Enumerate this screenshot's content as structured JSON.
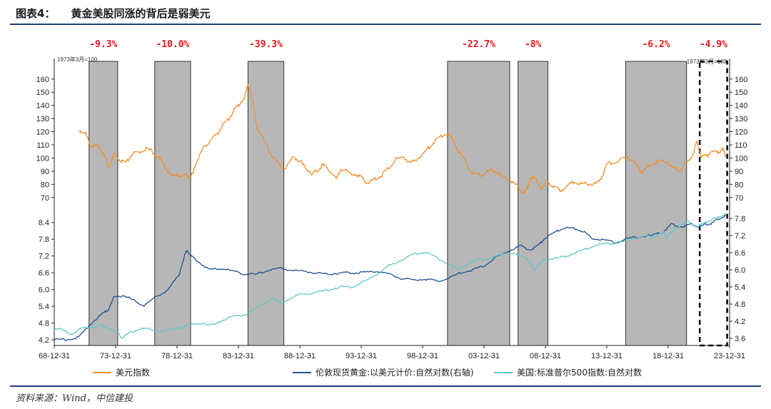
{
  "figure": {
    "label": "图表4：",
    "title": "黄金美股同涨的背后是弱美元",
    "source": "资料来源：Wind，中信建投"
  },
  "chart_data": {
    "type": "line",
    "x_tick_labels": [
      "68-12-31",
      "73-12-31",
      "78-12-31",
      "83-12-31",
      "88-12-31",
      "93-12-31",
      "98-12-31",
      "03-12-31",
      "08-12-31",
      "13-12-31",
      "18-12-31",
      "23-12-31"
    ],
    "x_range": [
      1968.99,
      2025.5
    ],
    "base_notes": [
      "1973年3月=100",
      "1973年3月=100"
    ],
    "left_upper_axis": {
      "ticks": [
        70,
        80,
        90,
        100,
        110,
        120,
        130,
        140,
        150,
        160
      ],
      "range": [
        65,
        168
      ]
    },
    "left_lower_axis": {
      "ticks": [
        4.2,
        4.8,
        5.4,
        6.0,
        6.6,
        7.2,
        7.8,
        8.4
      ],
      "range": [
        4.1,
        8.8
      ]
    },
    "right_upper_axis": {
      "ticks": [
        70,
        80,
        90,
        100,
        110,
        120,
        130,
        140,
        150,
        160
      ],
      "range": [
        65,
        168
      ]
    },
    "right_lower_axis": {
      "ticks": [
        3.6,
        4.2,
        4.8,
        5.4,
        6.0,
        6.6,
        7.2,
        7.8
      ],
      "range": [
        3.45,
        8.05
      ]
    },
    "shaded_periods": [
      {
        "start": 1971.9,
        "end": 1974.3,
        "label": "-9.3%"
      },
      {
        "start": 1977.4,
        "end": 1980.4,
        "label": "-10.0%"
      },
      {
        "start": 1985.2,
        "end": 1988.2,
        "label": "-39.3%"
      },
      {
        "start": 2001.9,
        "end": 2007.1,
        "label": "-22.7%"
      },
      {
        "start": 2007.8,
        "end": 2010.3,
        "label": "-8%"
      },
      {
        "start": 2016.8,
        "end": 2021.9,
        "label": "-6.2%"
      },
      {
        "start": 2023.0,
        "end": 2025.3,
        "label": "-4.9%",
        "dashed": true
      }
    ],
    "series": [
      {
        "name": "美元指数",
        "axis": "left_upper",
        "color": "#ef8f2a",
        "points": [
          [
            1971.1,
            121
          ],
          [
            1971.6,
            119
          ],
          [
            1972.0,
            110
          ],
          [
            1972.4,
            109
          ],
          [
            1972.8,
            109
          ],
          [
            1973.2,
            101
          ],
          [
            1973.6,
            93
          ],
          [
            1974.0,
            103
          ],
          [
            1974.5,
            98
          ],
          [
            1975.0,
            96
          ],
          [
            1975.5,
            103
          ],
          [
            1976.0,
            104
          ],
          [
            1976.6,
            107
          ],
          [
            1977.2,
            105
          ],
          [
            1977.8,
            100
          ],
          [
            1978.3,
            93
          ],
          [
            1978.9,
            86
          ],
          [
            1979.5,
            87
          ],
          [
            1980.0,
            87
          ],
          [
            1980.3,
            86
          ],
          [
            1980.6,
            88
          ],
          [
            1981.0,
            100
          ],
          [
            1981.5,
            108
          ],
          [
            1982.0,
            113
          ],
          [
            1982.6,
            118
          ],
          [
            1983.0,
            124
          ],
          [
            1983.6,
            130
          ],
          [
            1984.0,
            136
          ],
          [
            1984.5,
            141
          ],
          [
            1985.0,
            148
          ],
          [
            1985.2,
            157
          ],
          [
            1985.5,
            146
          ],
          [
            1986.0,
            123
          ],
          [
            1986.6,
            112
          ],
          [
            1987.2,
            102
          ],
          [
            1987.8,
            95
          ],
          [
            1988.3,
            92
          ],
          [
            1989.0,
            101
          ],
          [
            1989.5,
            98
          ],
          [
            1990.0,
            93
          ],
          [
            1990.6,
            88
          ],
          [
            1991.0,
            91
          ],
          [
            1991.5,
            95
          ],
          [
            1992.0,
            91
          ],
          [
            1992.6,
            84
          ],
          [
            1993.0,
            92
          ],
          [
            1993.6,
            89
          ],
          [
            1994.2,
            88
          ],
          [
            1994.8,
            84
          ],
          [
            1995.3,
            81
          ],
          [
            1995.8,
            84
          ],
          [
            1996.4,
            87
          ],
          [
            1997.0,
            93
          ],
          [
            1997.6,
            99
          ],
          [
            1998.2,
            101
          ],
          [
            1998.8,
            96
          ],
          [
            1999.4,
            100
          ],
          [
            2000.0,
            104
          ],
          [
            2000.6,
            111
          ],
          [
            2001.2,
            116
          ],
          [
            2001.8,
            119
          ],
          [
            2002.3,
            115
          ],
          [
            2002.8,
            106
          ],
          [
            2003.4,
            97
          ],
          [
            2004.0,
            88
          ],
          [
            2004.6,
            87
          ],
          [
            2005.2,
            89
          ],
          [
            2005.8,
            91
          ],
          [
            2006.4,
            86
          ],
          [
            2007.0,
            84
          ],
          [
            2007.6,
            80
          ],
          [
            2008.2,
            74
          ],
          [
            2008.5,
            75
          ],
          [
            2008.9,
            86
          ],
          [
            2009.3,
            84
          ],
          [
            2009.8,
            77
          ],
          [
            2010.3,
            82
          ],
          [
            2010.8,
            78
          ],
          [
            2011.3,
            75
          ],
          [
            2011.9,
            79
          ],
          [
            2012.5,
            82
          ],
          [
            2013.2,
            80
          ],
          [
            2013.8,
            81
          ],
          [
            2014.3,
            80
          ],
          [
            2014.8,
            86
          ],
          [
            2015.3,
            96
          ],
          [
            2016.0,
            97
          ],
          [
            2016.9,
            101
          ],
          [
            2017.3,
            99
          ],
          [
            2017.9,
            92
          ],
          [
            2018.2,
            89
          ],
          [
            2018.8,
            95
          ],
          [
            2019.5,
            97
          ],
          [
            2020.2,
            98
          ],
          [
            2020.8,
            92
          ],
          [
            2021.3,
            91
          ],
          [
            2021.9,
            96
          ],
          [
            2022.4,
            102
          ],
          [
            2022.75,
            112
          ],
          [
            2023.1,
            102
          ],
          [
            2023.6,
            101
          ],
          [
            2023.9,
            105
          ],
          [
            2024.5,
            104
          ],
          [
            2024.9,
            107
          ],
          [
            2025.2,
            101
          ]
        ]
      },
      {
        "name": "伦敦现货黄金:以美元计价:自然对数(右轴)",
        "axis": "right_lower",
        "color": "#1e4f8f",
        "points": [
          [
            1969.0,
            3.55
          ],
          [
            1970.0,
            3.56
          ],
          [
            1971.0,
            3.62
          ],
          [
            1972.0,
            4.1
          ],
          [
            1973.0,
            4.45
          ],
          [
            1973.5,
            4.6
          ],
          [
            1974.0,
            5.05
          ],
          [
            1974.9,
            5.1
          ],
          [
            1975.5,
            4.95
          ],
          [
            1976.5,
            4.75
          ],
          [
            1977.5,
            5.05
          ],
          [
            1978.5,
            5.3
          ],
          [
            1979.4,
            5.8
          ],
          [
            1979.9,
            6.5
          ],
          [
            1980.1,
            6.7
          ],
          [
            1980.4,
            6.5
          ],
          [
            1981.0,
            6.3
          ],
          [
            1982.0,
            6.0
          ],
          [
            1983.0,
            6.05
          ],
          [
            1984.0,
            5.95
          ],
          [
            1985.0,
            5.85
          ],
          [
            1986.0,
            5.85
          ],
          [
            1987.0,
            6.0
          ],
          [
            1988.0,
            6.05
          ],
          [
            1989.0,
            5.98
          ],
          [
            1990.0,
            5.95
          ],
          [
            1991.0,
            5.88
          ],
          [
            1992.0,
            5.85
          ],
          [
            1993.0,
            5.9
          ],
          [
            1994.0,
            5.9
          ],
          [
            1995.0,
            5.92
          ],
          [
            1996.0,
            5.95
          ],
          [
            1997.0,
            5.85
          ],
          [
            1998.0,
            5.7
          ],
          [
            1999.0,
            5.65
          ],
          [
            2000.0,
            5.68
          ],
          [
            2001.0,
            5.6
          ],
          [
            2002.0,
            5.7
          ],
          [
            2003.0,
            5.9
          ],
          [
            2004.0,
            6.0
          ],
          [
            2005.0,
            6.15
          ],
          [
            2006.0,
            6.45
          ],
          [
            2007.0,
            6.65
          ],
          [
            2008.0,
            6.85
          ],
          [
            2008.8,
            6.7
          ],
          [
            2009.5,
            6.85
          ],
          [
            2010.0,
            7.1
          ],
          [
            2011.0,
            7.35
          ],
          [
            2011.7,
            7.48
          ],
          [
            2012.5,
            7.45
          ],
          [
            2013.3,
            7.35
          ],
          [
            2013.9,
            7.12
          ],
          [
            2015.0,
            7.05
          ],
          [
            2015.9,
            6.95
          ],
          [
            2017.0,
            7.1
          ],
          [
            2018.0,
            7.15
          ],
          [
            2019.0,
            7.2
          ],
          [
            2020.0,
            7.35
          ],
          [
            2020.6,
            7.6
          ],
          [
            2021.5,
            7.5
          ],
          [
            2022.3,
            7.6
          ],
          [
            2022.9,
            7.5
          ],
          [
            2023.5,
            7.6
          ],
          [
            2024.0,
            7.62
          ],
          [
            2024.5,
            7.78
          ],
          [
            2025.2,
            7.9
          ]
        ]
      },
      {
        "name": "美国:标准普尔500指数:自然对数",
        "axis": "left_lower",
        "color": "#5ec8c8",
        "points": [
          [
            1969.0,
            4.62
          ],
          [
            1969.5,
            4.58
          ],
          [
            1970.4,
            4.4
          ],
          [
            1971.2,
            4.6
          ],
          [
            1972.0,
            4.66
          ],
          [
            1972.9,
            4.72
          ],
          [
            1973.6,
            4.6
          ],
          [
            1974.3,
            4.45
          ],
          [
            1974.7,
            4.28
          ],
          [
            1975.3,
            4.45
          ],
          [
            1976.2,
            4.6
          ],
          [
            1977.0,
            4.58
          ],
          [
            1978.0,
            4.5
          ],
          [
            1979.0,
            4.6
          ],
          [
            1980.0,
            4.68
          ],
          [
            1981.0,
            4.8
          ],
          [
            1982.5,
            4.75
          ],
          [
            1983.0,
            4.9
          ],
          [
            1984.0,
            5.05
          ],
          [
            1985.0,
            5.1
          ],
          [
            1986.0,
            5.35
          ],
          [
            1987.3,
            5.7
          ],
          [
            1987.9,
            5.5
          ],
          [
            1989.0,
            5.75
          ],
          [
            1990.0,
            5.85
          ],
          [
            1991.0,
            5.9
          ],
          [
            1992.0,
            6.0
          ],
          [
            1993.0,
            6.1
          ],
          [
            1994.0,
            6.1
          ],
          [
            1995.0,
            6.3
          ],
          [
            1996.0,
            6.55
          ],
          [
            1997.0,
            6.85
          ],
          [
            1998.0,
            7.05
          ],
          [
            1999.0,
            7.25
          ],
          [
            2000.0,
            7.35
          ],
          [
            2001.0,
            7.15
          ],
          [
            2002.0,
            6.9
          ],
          [
            2002.8,
            6.75
          ],
          [
            2003.8,
            6.98
          ],
          [
            2005.0,
            7.1
          ],
          [
            2006.0,
            7.2
          ],
          [
            2007.5,
            7.32
          ],
          [
            2008.5,
            7.1
          ],
          [
            2009.2,
            6.7
          ],
          [
            2009.8,
            7.0
          ],
          [
            2010.5,
            7.1
          ],
          [
            2011.5,
            7.15
          ],
          [
            2012.5,
            7.3
          ],
          [
            2013.5,
            7.45
          ],
          [
            2014.5,
            7.62
          ],
          [
            2015.5,
            7.65
          ],
          [
            2016.5,
            7.7
          ],
          [
            2017.5,
            7.85
          ],
          [
            2018.5,
            7.9
          ],
          [
            2019.0,
            7.88
          ],
          [
            2020.0,
            8.05
          ],
          [
            2020.2,
            7.85
          ],
          [
            2020.8,
            8.1
          ],
          [
            2021.5,
            8.35
          ],
          [
            2022.0,
            8.45
          ],
          [
            2022.8,
            8.25
          ],
          [
            2023.5,
            8.4
          ],
          [
            2024.0,
            8.5
          ],
          [
            2024.6,
            8.6
          ],
          [
            2025.2,
            8.72
          ]
        ]
      }
    ]
  }
}
